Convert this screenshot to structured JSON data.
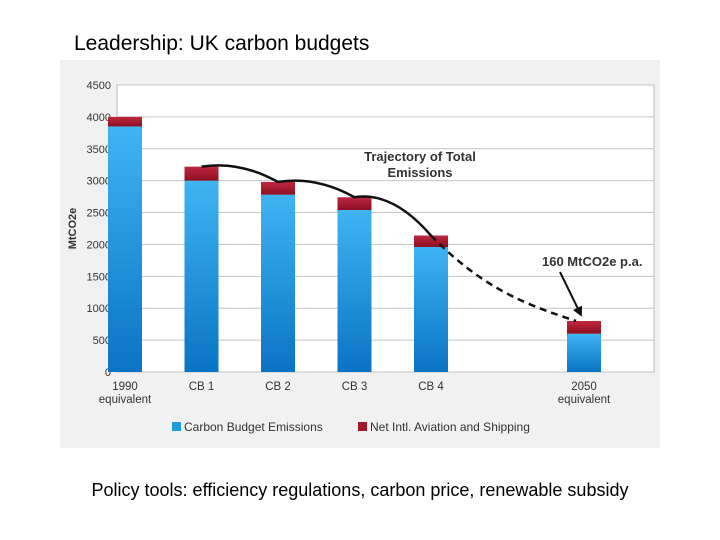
{
  "slide": {
    "title": "Leadership: UK carbon budgets",
    "caption": "Policy tools: efficiency regulations, carbon price, renewable subsidy"
  },
  "chart_data": {
    "type": "bar",
    "stacked": true,
    "categories": [
      [
        "1990",
        "equivalent"
      ],
      [
        "CB 1"
      ],
      [
        "CB 2"
      ],
      [
        "CB 3"
      ],
      [
        "CB 4"
      ],
      [
        "2050",
        "equivalent"
      ]
    ],
    "category_positions": [
      0,
      1,
      2,
      3,
      4,
      6
    ],
    "series": [
      {
        "name": "Carbon Budget Emissions",
        "color": "#1f9be0",
        "values": [
          3850,
          3000,
          2780,
          2540,
          1960,
          600
        ]
      },
      {
        "name": "Net Intl. Aviation and Shipping",
        "color": "#a5182e",
        "values": [
          150,
          220,
          200,
          200,
          180,
          200
        ]
      }
    ],
    "ylabel": "MtCO2e",
    "ylim": [
      0,
      4500
    ],
    "yticks": [
      0,
      500,
      1000,
      1500,
      2000,
      2500,
      3000,
      3500,
      4000,
      4500
    ],
    "grid": true,
    "legend_position": "bottom",
    "trajectory": {
      "label_lines": [
        "Trajectory of Total",
        "Emissions"
      ],
      "points": [
        [
          1,
          3220
        ],
        [
          2,
          2980
        ],
        [
          3,
          2740
        ],
        [
          4,
          2140
        ],
        [
          6,
          800
        ]
      ],
      "dashed_from_index": 3
    },
    "callout": {
      "label": "160 MtCO2e p.a.",
      "target_category": 6
    }
  }
}
